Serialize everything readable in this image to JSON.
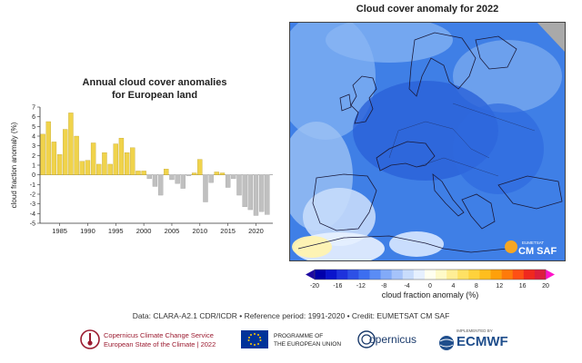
{
  "footer": {
    "data_line": "Data: CLARA-A2.1 CDR/ICDR • Reference period: 1991-2020 • Credit: EUMETSAT CM SAF"
  },
  "logos": {
    "c3s_line1": "Copernicus Climate Change Service",
    "c3s_line2": "European State of the Climate | 2022",
    "eu_line1": "PROGRAMME OF",
    "eu_line2": "THE EUROPEAN UNION",
    "copernicus": "opernicus",
    "implemented_by": "IMPLEMENTED BY",
    "ecmwf": "ECMWF"
  },
  "map": {
    "title": "Cloud cover anomaly for 2022",
    "watermark": "CM SAF",
    "watermark_top": "EUMETSAT"
  },
  "colorbar": {
    "label": "cloud fraction anomaly (%)",
    "ticks": [
      "-20",
      "-16",
      "-12",
      "-8",
      "-4",
      "0",
      "4",
      "8",
      "12",
      "16",
      "20"
    ],
    "colors": [
      "#0000aa",
      "#0a14cc",
      "#1e32dc",
      "#2d50e6",
      "#3c6ef0",
      "#5a8cf5",
      "#82aaf8",
      "#a5c3fa",
      "#c8dcfc",
      "#e6f0ff",
      "#fffff0",
      "#fffac8",
      "#ffee96",
      "#ffe164",
      "#ffd23c",
      "#ffbe1e",
      "#ffa00a",
      "#ff7a0a",
      "#ff5014",
      "#f0281e",
      "#dc1e3c"
    ],
    "under_color": "#1e0aa0",
    "over_color": "#ff14c8"
  },
  "chart_data": {
    "type": "bar",
    "title": "Annual cloud cover anomalies\nfor European land",
    "ylabel": "cloud fraction anomaly (%)",
    "ylim": [
      -5,
      7
    ],
    "yticks": [
      -5,
      -4,
      -3,
      -2,
      -1,
      0,
      1,
      2,
      3,
      4,
      5,
      6,
      7
    ],
    "xticks": [
      1985,
      1990,
      1995,
      2000,
      2005,
      2010,
      2015,
      2020
    ],
    "xlim": [
      1981.5,
      2023
    ],
    "positive_color": "#f0d34b",
    "negative_color": "#c0c0c0",
    "x": [
      1982,
      1983,
      1984,
      1985,
      1986,
      1987,
      1988,
      1989,
      1990,
      1991,
      1992,
      1993,
      1994,
      1995,
      1996,
      1997,
      1998,
      1999,
      2000,
      2001,
      2002,
      2003,
      2004,
      2005,
      2006,
      2007,
      2008,
      2009,
      2010,
      2011,
      2012,
      2013,
      2014,
      2015,
      2016,
      2017,
      2018,
      2019,
      2020,
      2021,
      2022
    ],
    "values": [
      4.2,
      5.5,
      3.4,
      2.1,
      4.7,
      6.4,
      4.0,
      1.4,
      1.5,
      3.3,
      1.1,
      2.3,
      1.1,
      3.2,
      3.8,
      2.3,
      2.8,
      0.4,
      0.4,
      -0.4,
      -1.2,
      -2.1,
      0.6,
      -0.5,
      -0.9,
      -1.4,
      -0.1,
      0.2,
      1.6,
      -2.8,
      -0.8,
      0.3,
      0.2,
      -1.3,
      -0.4,
      -2.1,
      -3.3,
      -3.6,
      -4.2,
      -3.8,
      -4.1
    ]
  }
}
